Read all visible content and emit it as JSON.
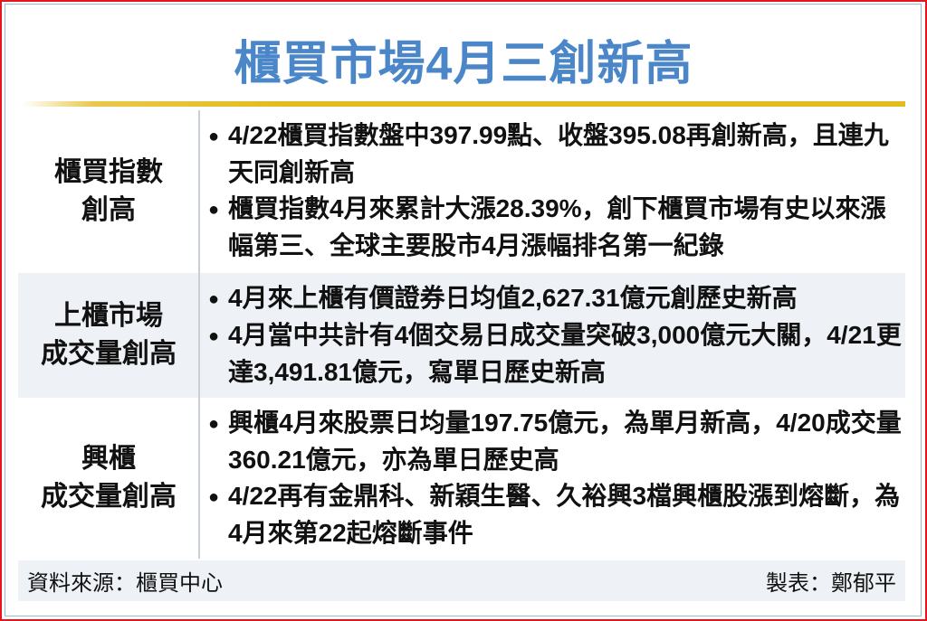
{
  "title": "櫃買市場4月三創新高",
  "colors": {
    "title": "#4a86c8",
    "accent_line": "#e2bc1c",
    "border": "#e8141c"
  },
  "rows": [
    {
      "label_lines": [
        "櫃買指數",
        "創高"
      ],
      "items": [
        "4/22櫃買指數盤中397.99點、收盤395.08再創新高，且連九天同創新高",
        "櫃買指數4月來累計大漲28.39%，創下櫃買市場有史以來漲幅第三、全球主要股市4月漲幅排名第一紀錄"
      ]
    },
    {
      "label_lines": [
        "上櫃市場",
        "成交量創高"
      ],
      "items": [
        "4月來上櫃有價證券日均值2,627.31億元創歷史新高",
        "4月當中共計有4個交易日成交量突破3,000億元大關，4/21更達3,491.81億元，寫單日歷史新高"
      ]
    },
    {
      "label_lines": [
        "興櫃",
        "成交量創高"
      ],
      "items": [
        "興櫃4月來股票日均量197.75億元，為單月新高，4/20成交量360.21億元，亦為單日歷史高",
        "4/22再有金鼎科、新穎生醫、久裕興3檔興櫃股漲到熔斷，為4月來第22起熔斷事件"
      ]
    }
  ],
  "footer": {
    "source": "資料來源：櫃買中心",
    "author": "製表：鄭郁平"
  }
}
